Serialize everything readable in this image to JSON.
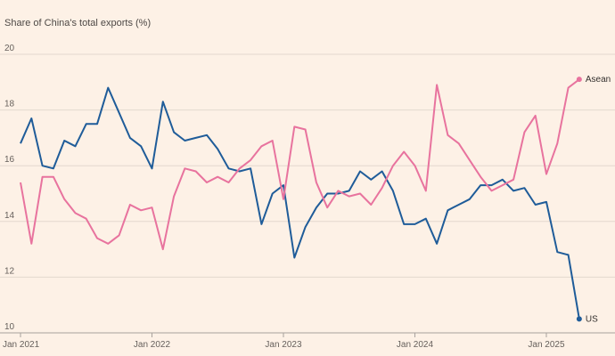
{
  "chart_data": {
    "type": "line",
    "ylabel": "Share of China's total exports (%)",
    "ylim": [
      10,
      20
    ],
    "y_ticks": [
      10,
      12,
      14,
      16,
      18,
      20
    ],
    "x_start": "2021-01",
    "x_ticks": [
      {
        "label": "Jan 2021",
        "month": 0
      },
      {
        "label": "Jan 2022",
        "month": 12
      },
      {
        "label": "Jan 2023",
        "month": 24
      },
      {
        "label": "Jan 2024",
        "month": 36
      },
      {
        "label": "Jan 2025",
        "month": 48
      }
    ],
    "grid": true,
    "series": [
      {
        "name": "US",
        "color": "#1f5c99",
        "values": [
          16.8,
          17.7,
          16.0,
          15.9,
          16.9,
          16.7,
          17.5,
          17.5,
          18.8,
          17.9,
          17.0,
          16.7,
          15.9,
          18.3,
          17.2,
          16.9,
          17.0,
          17.1,
          16.6,
          15.9,
          15.8,
          15.9,
          13.9,
          15.0,
          15.3,
          12.7,
          13.8,
          14.5,
          15.0,
          15.0,
          15.1,
          15.8,
          15.5,
          15.8,
          15.1,
          13.9,
          13.9,
          14.1,
          13.2,
          14.4,
          14.6,
          14.8,
          15.3,
          15.3,
          15.5,
          15.1,
          15.2,
          14.6,
          14.7,
          12.9,
          12.8,
          10.5
        ]
      },
      {
        "name": "Asean",
        "color": "#e8739e",
        "values": [
          15.4,
          13.2,
          15.6,
          15.6,
          14.8,
          14.3,
          14.1,
          13.4,
          13.2,
          13.5,
          14.6,
          14.4,
          14.5,
          13.0,
          14.9,
          15.9,
          15.8,
          15.4,
          15.6,
          15.4,
          15.9,
          16.2,
          16.7,
          16.9,
          14.8,
          17.4,
          17.3,
          15.4,
          14.5,
          15.1,
          14.9,
          15.0,
          14.6,
          15.2,
          16.0,
          16.5,
          16.0,
          15.1,
          18.9,
          17.1,
          16.8,
          16.2,
          15.6,
          15.1,
          15.3,
          15.5,
          17.2,
          17.8,
          15.7,
          16.8,
          18.8,
          19.1
        ]
      }
    ]
  }
}
